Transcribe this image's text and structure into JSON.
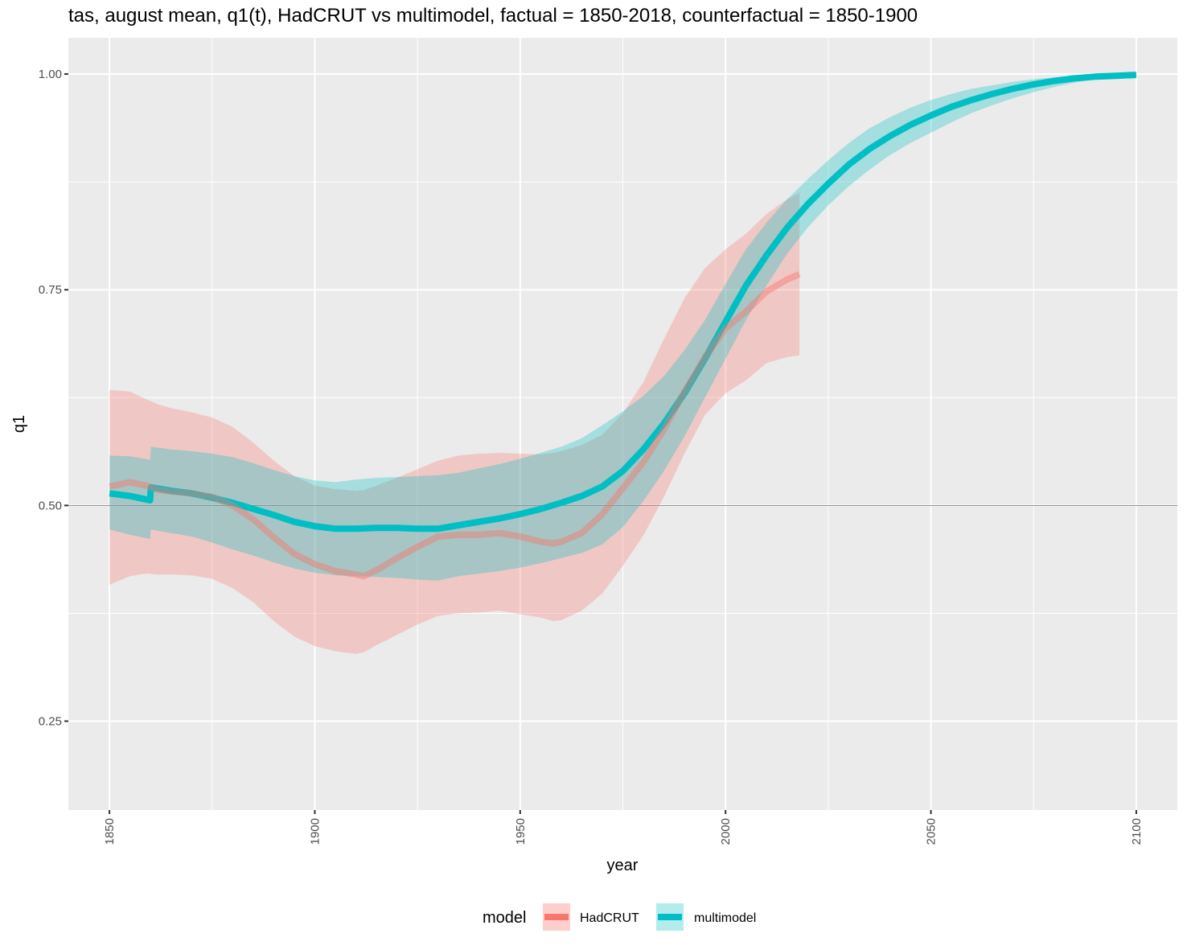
{
  "chart_data": {
    "type": "line",
    "title": "tas, august mean, q1(t), HadCRUT vs multimodel, factual = 1850-2018, counterfactual = 1850-1900",
    "xlabel": "year",
    "ylabel": "q1",
    "xlim": [
      1840,
      2110
    ],
    "ylim": [
      0.147,
      1.042
    ],
    "x_ticks": [
      1850,
      1900,
      1950,
      2000,
      2050,
      2100
    ],
    "y_ticks": [
      0.25,
      0.5,
      0.75,
      1.0
    ],
    "y_tick_labels": [
      "0.25",
      "0.50",
      "0.75",
      "1.00"
    ],
    "reference_line_y": 0.5,
    "grid": true,
    "legend": {
      "title": "model",
      "position": "bottom"
    },
    "colors": {
      "panel": "#ebebeb",
      "grid": "#ffffff",
      "HadCRUT": "#f8766d",
      "multimodel": "#00bfc4"
    },
    "series": [
      {
        "name": "multimodel",
        "x": [
          1850,
          1855,
          1859.9,
          1860.1,
          1865,
          1870,
          1875,
          1880,
          1885,
          1890,
          1895,
          1900,
          1905,
          1910,
          1915,
          1920,
          1925,
          1930,
          1935,
          1940,
          1945,
          1950,
          1955,
          1960,
          1965,
          1970,
          1975,
          1980,
          1985,
          1990,
          1995,
          2000,
          2005,
          2010,
          2015,
          2020,
          2025,
          2030,
          2035,
          2040,
          2045,
          2050,
          2055,
          2060,
          2065,
          2070,
          2075,
          2080,
          2085,
          2090,
          2095,
          2100
        ],
        "mean": [
          0.514,
          0.511,
          0.506,
          0.521,
          0.517,
          0.514,
          0.509,
          0.503,
          0.496,
          0.489,
          0.481,
          0.476,
          0.473,
          0.473,
          0.474,
          0.474,
          0.473,
          0.473,
          0.477,
          0.481,
          0.485,
          0.49,
          0.496,
          0.503,
          0.511,
          0.522,
          0.54,
          0.565,
          0.595,
          0.63,
          0.67,
          0.713,
          0.755,
          0.79,
          0.822,
          0.849,
          0.873,
          0.895,
          0.913,
          0.928,
          0.941,
          0.952,
          0.962,
          0.97,
          0.977,
          0.983,
          0.988,
          0.992,
          0.995,
          0.997,
          0.998,
          0.999
        ],
        "lower": [
          0.472,
          0.466,
          0.461,
          0.472,
          0.468,
          0.464,
          0.457,
          0.449,
          0.442,
          0.434,
          0.427,
          0.422,
          0.419,
          0.418,
          0.417,
          0.416,
          0.414,
          0.413,
          0.418,
          0.421,
          0.424,
          0.428,
          0.433,
          0.439,
          0.445,
          0.455,
          0.475,
          0.505,
          0.54,
          0.58,
          0.625,
          0.67,
          0.715,
          0.755,
          0.792,
          0.822,
          0.848,
          0.87,
          0.889,
          0.906,
          0.92,
          0.932,
          0.944,
          0.955,
          0.964,
          0.972,
          0.979,
          0.985,
          0.99,
          0.994,
          0.996,
          0.998
        ],
        "upper": [
          0.558,
          0.557,
          0.553,
          0.568,
          0.565,
          0.563,
          0.56,
          0.556,
          0.549,
          0.541,
          0.534,
          0.529,
          0.527,
          0.53,
          0.532,
          0.533,
          0.534,
          0.535,
          0.538,
          0.543,
          0.548,
          0.554,
          0.561,
          0.568,
          0.578,
          0.593,
          0.609,
          0.627,
          0.65,
          0.68,
          0.715,
          0.757,
          0.797,
          0.828,
          0.855,
          0.878,
          0.9,
          0.92,
          0.937,
          0.95,
          0.961,
          0.97,
          0.977,
          0.983,
          0.987,
          0.991,
          0.994,
          0.996,
          0.998,
          0.999,
          0.999,
          1.0
        ]
      },
      {
        "name": "HadCRUT",
        "x": [
          1850,
          1855,
          1859,
          1862,
          1865,
          1870,
          1875,
          1880,
          1885,
          1890,
          1895,
          1900,
          1905,
          1910,
          1912,
          1915,
          1920,
          1925,
          1930,
          1935,
          1940,
          1945,
          1950,
          1955,
          1958,
          1960,
          1965,
          1970,
          1975,
          1980,
          1985,
          1990,
          1995,
          2000,
          2005,
          2010,
          2015,
          2018
        ],
        "mean": [
          0.522,
          0.527,
          0.523,
          0.518,
          0.516,
          0.514,
          0.51,
          0.5,
          0.484,
          0.463,
          0.444,
          0.432,
          0.424,
          0.42,
          0.418,
          0.425,
          0.439,
          0.452,
          0.464,
          0.466,
          0.466,
          0.468,
          0.464,
          0.458,
          0.456,
          0.458,
          0.468,
          0.49,
          0.52,
          0.55,
          0.588,
          0.632,
          0.672,
          0.705,
          0.725,
          0.748,
          0.762,
          0.768
        ],
        "lower": [
          0.408,
          0.418,
          0.421,
          0.42,
          0.42,
          0.419,
          0.415,
          0.404,
          0.388,
          0.366,
          0.348,
          0.337,
          0.331,
          0.328,
          0.33,
          0.338,
          0.35,
          0.362,
          0.372,
          0.375,
          0.376,
          0.378,
          0.374,
          0.37,
          0.366,
          0.367,
          0.378,
          0.398,
          0.43,
          0.465,
          0.51,
          0.56,
          0.605,
          0.63,
          0.645,
          0.665,
          0.672,
          0.674
        ],
        "upper": [
          0.634,
          0.632,
          0.623,
          0.617,
          0.613,
          0.608,
          0.602,
          0.591,
          0.573,
          0.552,
          0.534,
          0.523,
          0.519,
          0.517,
          0.518,
          0.523,
          0.532,
          0.542,
          0.552,
          0.558,
          0.56,
          0.561,
          0.56,
          0.559,
          0.561,
          0.563,
          0.57,
          0.582,
          0.607,
          0.643,
          0.693,
          0.74,
          0.775,
          0.797,
          0.815,
          0.838,
          0.855,
          0.862
        ]
      }
    ]
  }
}
